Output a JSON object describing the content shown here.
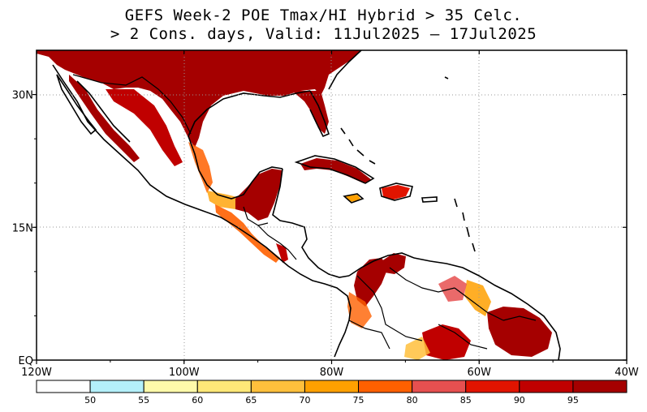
{
  "title": {
    "line1": "GEFS Week-2 POE Tmax/HI Hybrid > 35 Celc.",
    "line2": "> 2 Cons. days, Valid: 11Jul2025 – 17Jul2025"
  },
  "map": {
    "lon_range": [
      -120,
      -40
    ],
    "lat_range": [
      0,
      35
    ],
    "x_ticks": [
      {
        "value": -120,
        "label": "120W"
      },
      {
        "value": -100,
        "label": "100W"
      },
      {
        "value": -80,
        "label": "80W"
      },
      {
        "value": -60,
        "label": "60W"
      },
      {
        "value": -40,
        "label": "40W"
      }
    ],
    "y_ticks": [
      {
        "value": 30,
        "label": "30N"
      },
      {
        "value": 15,
        "label": "15N"
      },
      {
        "value": 0,
        "label": "EQ"
      }
    ]
  },
  "colorbar": {
    "colors": [
      "#ffffff",
      "#b4f0fa",
      "#fffaaa",
      "#ffe878",
      "#ffc03c",
      "#ffa000",
      "#ff6000",
      "#e65050",
      "#e11400",
      "#c00000",
      "#a50000"
    ],
    "labels": [
      "50",
      "55",
      "60",
      "65",
      "70",
      "75",
      "80",
      "85",
      "90",
      "95"
    ]
  },
  "colors": {
    "dark_red": "#a50000",
    "red": "#c00000",
    "border": "#000000"
  }
}
